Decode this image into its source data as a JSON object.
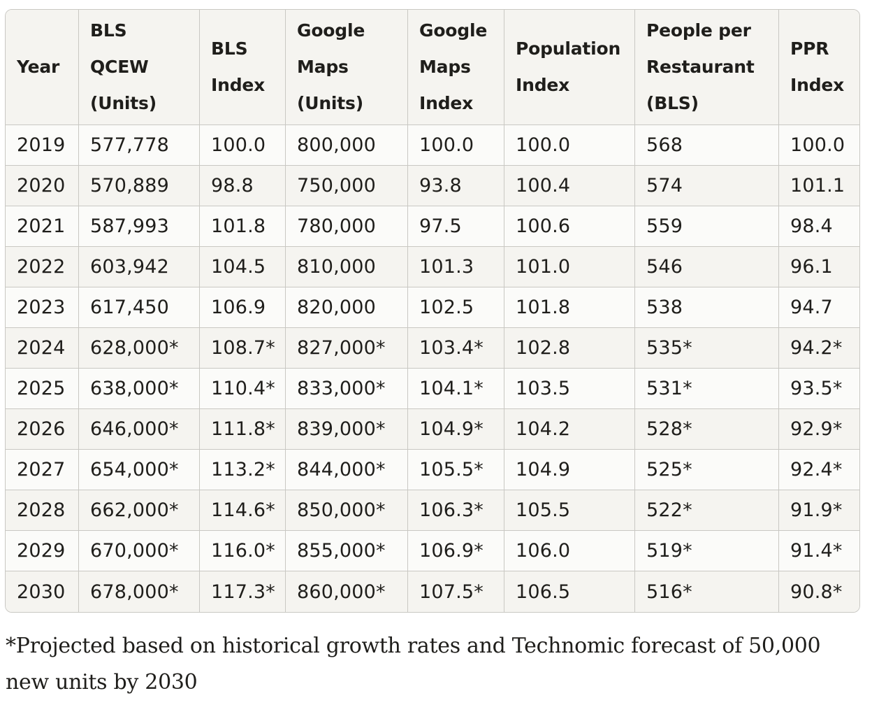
{
  "table": {
    "columns": [
      "Year",
      "BLS QCEW (Units)",
      "BLS Index",
      "Google Maps (Units)",
      "Google Maps Index",
      "Population Index",
      "People per Restaurant (BLS)",
      "PPR Index"
    ],
    "rows": [
      [
        "2019",
        "577,778",
        "100.0",
        "800,000",
        "100.0",
        "100.0",
        "568",
        "100.0"
      ],
      [
        "2020",
        "570,889",
        "98.8",
        "750,000",
        "93.8",
        "100.4",
        "574",
        "101.1"
      ],
      [
        "2021",
        "587,993",
        "101.8",
        "780,000",
        "97.5",
        "100.6",
        "559",
        "98.4"
      ],
      [
        "2022",
        "603,942",
        "104.5",
        "810,000",
        "101.3",
        "101.0",
        "546",
        "96.1"
      ],
      [
        "2023",
        "617,450",
        "106.9",
        "820,000",
        "102.5",
        "101.8",
        "538",
        "94.7"
      ],
      [
        "2024",
        "628,000*",
        "108.7*",
        "827,000*",
        "103.4*",
        "102.8",
        "535*",
        "94.2*"
      ],
      [
        "2025",
        "638,000*",
        "110.4*",
        "833,000*",
        "104.1*",
        "103.5",
        "531*",
        "93.5*"
      ],
      [
        "2026",
        "646,000*",
        "111.8*",
        "839,000*",
        "104.9*",
        "104.2",
        "528*",
        "92.9*"
      ],
      [
        "2027",
        "654,000*",
        "113.2*",
        "844,000*",
        "105.5*",
        "104.9",
        "525*",
        "92.4*"
      ],
      [
        "2028",
        "662,000*",
        "114.6*",
        "850,000*",
        "106.3*",
        "105.5",
        "522*",
        "91.9*"
      ],
      [
        "2029",
        "670,000*",
        "116.0*",
        "855,000*",
        "106.9*",
        "106.0",
        "519*",
        "91.4*"
      ],
      [
        "2030",
        "678,000*",
        "117.3*",
        "860,000*",
        "107.5*",
        "106.5",
        "516*",
        "90.8*"
      ]
    ]
  },
  "footnote": "*Projected based on historical growth rates and Technomic forecast of 50,000 new units by 2030"
}
